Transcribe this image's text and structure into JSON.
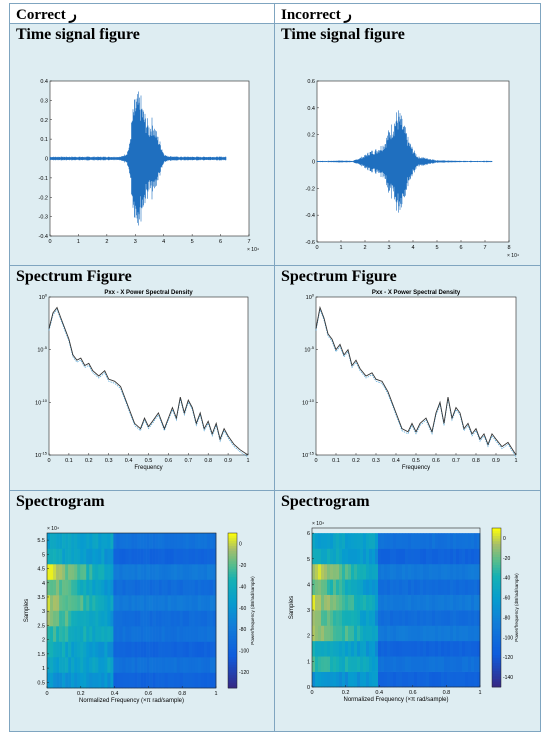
{
  "columns": [
    {
      "header": "Correct ر"
    },
    {
      "header": "Incorrect ر"
    }
  ],
  "row_titles": {
    "time": "Time signal figure",
    "spectrum": "Spectrum Figure",
    "spectrogram": "Spectrogram"
  },
  "colors": {
    "signal": "#1f6fbf",
    "cell_bg": "#deedf2",
    "border": "#7fa5c0"
  },
  "chart_data": [
    {
      "id": "time-correct",
      "type": "line",
      "x": [
        0,
        5000,
        10000,
        20000,
        25000,
        27000,
        28000,
        29000,
        30000,
        31000,
        32000,
        33000,
        34000,
        35000,
        36000,
        37000,
        38000,
        39000,
        40000,
        41000,
        45000,
        50000,
        55000,
        60000,
        62000
      ],
      "envelope": [
        0.01,
        0.01,
        0.01,
        0.01,
        0.01,
        0.03,
        0.08,
        0.25,
        0.33,
        0.35,
        0.33,
        0.26,
        0.22,
        0.18,
        0.22,
        0.17,
        0.12,
        0.08,
        0.03,
        0.015,
        0.01,
        0.01,
        0.01,
        0.01,
        0.01
      ],
      "xlim": [
        0,
        70000
      ],
      "ylim": [
        -0.4,
        0.4
      ],
      "xticks": [
        "0",
        "1",
        "2",
        "3",
        "4",
        "5",
        "6",
        "7"
      ],
      "yticks": [
        "0.4",
        "0.3",
        "0.2",
        "0.1",
        "0",
        "-0.1",
        "-0.2",
        "-0.3",
        "-0.4"
      ],
      "exponent": "× 10⁴"
    },
    {
      "id": "time-incorrect",
      "type": "line",
      "x": [
        0,
        5000,
        10000,
        15000,
        18000,
        20000,
        22000,
        25000,
        28000,
        30000,
        32000,
        33000,
        34000,
        35000,
        36000,
        37000,
        38000,
        40000,
        42000,
        45000,
        50000,
        60000,
        70000,
        73000
      ],
      "envelope": [
        0.005,
        0.005,
        0.008,
        0.005,
        0.03,
        0.05,
        0.08,
        0.1,
        0.15,
        0.25,
        0.33,
        0.38,
        0.4,
        0.36,
        0.3,
        0.25,
        0.18,
        0.1,
        0.04,
        0.03,
        0.01,
        0.005,
        0.005,
        0.005
      ],
      "xlim": [
        0,
        80000
      ],
      "ylim": [
        -0.6,
        0.6
      ],
      "xticks": [
        "0",
        "1",
        "2",
        "3",
        "4",
        "5",
        "6",
        "7",
        "8"
      ],
      "yticks": [
        "0.6",
        "0.4",
        "0.2",
        "0",
        "-0.2",
        "-0.4",
        "-0.6"
      ],
      "exponent": "× 10⁴"
    },
    {
      "id": "psd-correct",
      "type": "line",
      "title": "Pxx - X Power Spectral Density",
      "xlabel": "Frequency",
      "x": [
        0,
        0.02,
        0.04,
        0.06,
        0.08,
        0.1,
        0.12,
        0.14,
        0.16,
        0.18,
        0.2,
        0.22,
        0.25,
        0.28,
        0.3,
        0.33,
        0.36,
        0.4,
        0.43,
        0.46,
        0.48,
        0.5,
        0.52,
        0.55,
        0.58,
        0.6,
        0.62,
        0.64,
        0.66,
        0.68,
        0.7,
        0.72,
        0.74,
        0.76,
        0.78,
        0.8,
        0.82,
        0.84,
        0.86,
        0.88,
        0.9,
        0.93,
        0.96,
        1.0
      ],
      "log10_y": [
        -3,
        -1.5,
        -1,
        -2,
        -3,
        -4,
        -5.5,
        -6,
        -5.8,
        -6.5,
        -6.3,
        -7,
        -7.5,
        -7,
        -7.8,
        -8,
        -8.5,
        -10.5,
        -12,
        -12.5,
        -11.5,
        -12.3,
        -11.8,
        -11,
        -12.5,
        -11.5,
        -10.5,
        -11.5,
        -9.5,
        -11,
        -9.8,
        -10.5,
        -12,
        -11,
        -12.5,
        -11.8,
        -13,
        -12,
        -13.5,
        -12.5,
        -13.2,
        -14,
        -14.5,
        -15
      ],
      "ylim_log10": [
        -15,
        0
      ],
      "xticks": [
        "0",
        "0.1",
        "0.2",
        "0.3",
        "0.4",
        "0.5",
        "0.6",
        "0.7",
        "0.8",
        "0.9",
        "1"
      ]
    },
    {
      "id": "psd-incorrect",
      "type": "line",
      "title": "Pxx - X Power Spectral Density",
      "xlabel": "Frequency",
      "x": [
        0,
        0.02,
        0.04,
        0.06,
        0.08,
        0.1,
        0.12,
        0.14,
        0.16,
        0.18,
        0.2,
        0.22,
        0.25,
        0.28,
        0.3,
        0.33,
        0.36,
        0.4,
        0.43,
        0.46,
        0.48,
        0.5,
        0.52,
        0.55,
        0.58,
        0.6,
        0.62,
        0.64,
        0.66,
        0.68,
        0.7,
        0.72,
        0.74,
        0.76,
        0.78,
        0.8,
        0.82,
        0.84,
        0.86,
        0.88,
        0.9,
        0.93,
        0.96,
        1.0
      ],
      "log10_y": [
        -3,
        -1,
        -2,
        -3.5,
        -4,
        -5,
        -4.5,
        -5.5,
        -5,
        -6.5,
        -6,
        -6.8,
        -7.5,
        -7.2,
        -7.8,
        -8,
        -9,
        -11,
        -12.5,
        -12.8,
        -12,
        -12.8,
        -12,
        -11.5,
        -12.8,
        -11,
        -10,
        -12,
        -9.5,
        -11.5,
        -10.5,
        -11,
        -12.5,
        -12,
        -13,
        -12.5,
        -13.5,
        -13,
        -14,
        -13,
        -13.5,
        -14.2,
        -13.8,
        -15
      ],
      "ylim_log10": [
        -15,
        0
      ],
      "xticks": [
        "0",
        "0.1",
        "0.2",
        "0.3",
        "0.4",
        "0.5",
        "0.6",
        "0.7",
        "0.8",
        "0.9",
        "1"
      ]
    },
    {
      "id": "spec-correct",
      "type": "heatmap",
      "xlabel": "Normalized Frequency  (×π rad/sample)",
      "ylabel": "Samples",
      "cbar_label": "Power/frequency (dB/rad/sample)",
      "yexp": "× 10⁴",
      "bands": [
        0.5,
        0.75,
        1.25,
        1.75,
        2.25,
        2.75,
        3.25,
        3.75,
        4.25,
        4.75,
        5.25,
        5.75
      ],
      "ylim": [
        0.3,
        5.75
      ],
      "yticks": [
        "5.5",
        "5",
        "4.5",
        "4",
        "3.5",
        "3",
        "2.5",
        "2",
        "1.5",
        "1",
        "0.5"
      ],
      "xticks": [
        "0",
        "0.2",
        "0.4",
        "0.6",
        "0.8",
        "1"
      ],
      "cbar_ticks": [
        "0",
        "-20",
        "-40",
        "-60",
        "-80",
        "-100",
        "-120"
      ],
      "cbar_lim": [
        -135,
        10
      ]
    },
    {
      "id": "spec-incorrect",
      "type": "heatmap",
      "xlabel": "Normalized Frequency  (×π rad/sample)",
      "ylabel": "Samples",
      "cbar_label": "Power/frequency (dB/rad/sample)",
      "yexp": "× 10⁴",
      "ylim": [
        0,
        6.2
      ],
      "yticks": [
        "6",
        "5",
        "4",
        "3",
        "2",
        "1",
        "0"
      ],
      "xticks": [
        "0",
        "0.2",
        "0.4",
        "0.6",
        "0.8",
        "1"
      ],
      "cbar_ticks": [
        "0",
        "-20",
        "-40",
        "-60",
        "-80",
        "-100",
        "-120",
        "-140"
      ],
      "cbar_lim": [
        -150,
        10
      ]
    }
  ]
}
